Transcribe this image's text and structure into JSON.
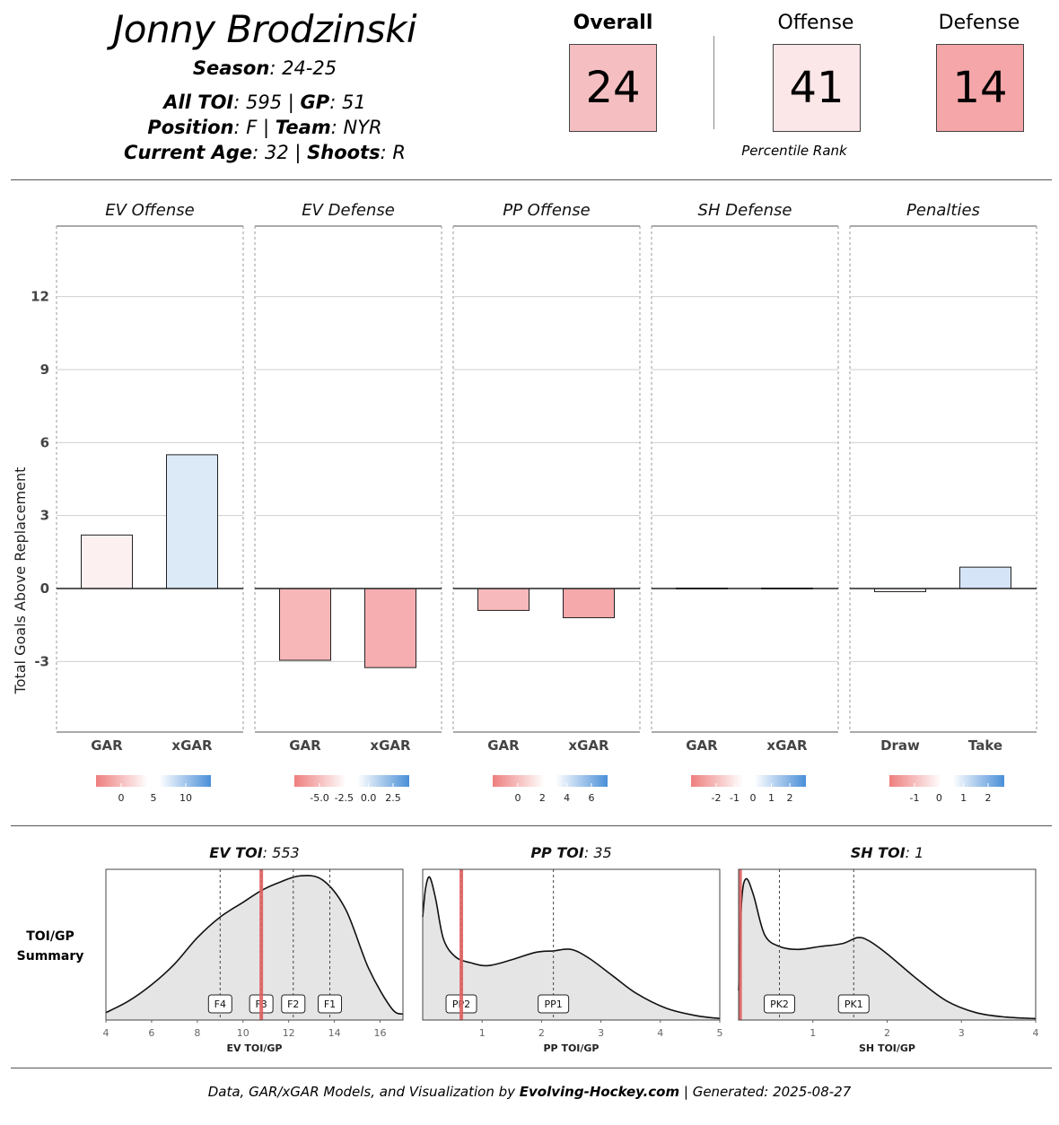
{
  "header": {
    "player_name": "Jonny Brodzinski",
    "season_label": "Season",
    "season": "24-25",
    "toi_label": "All TOI",
    "toi": "595",
    "gp_label": "GP",
    "gp": "51",
    "position_label": "Position",
    "position": "F",
    "team_label": "Team",
    "team": "NYR",
    "age_label": "Current Age",
    "age": "32",
    "shoots_label": "Shoots",
    "shoots": "R"
  },
  "scores": {
    "overall_label": "Overall",
    "overall": "24",
    "overall_color": "#f5bfc1",
    "offense_label": "Offense",
    "offense": "41",
    "offense_color": "#fbe7e8",
    "defense_label": "Defense",
    "defense": "14",
    "defense_color": "#f4a6a8",
    "percentile_label": "Percentile Rank"
  },
  "chart_data": [
    {
      "type": "bar",
      "ylabel": "Total Goals Above Replacement",
      "ylim": [
        -5.9,
        14.9
      ],
      "yticks": [
        -3,
        0,
        3,
        6,
        9,
        12
      ],
      "grid": true,
      "panels": [
        {
          "title": "EV Offense",
          "categories": [
            "GAR",
            "xGAR"
          ],
          "values": [
            2.2,
            5.5
          ],
          "colors": [
            "#fdf0f0",
            "#dce9f6"
          ],
          "legend_ticks": [
            "0",
            "5",
            "10"
          ]
        },
        {
          "title": "EV Defense",
          "categories": [
            "GAR",
            "xGAR"
          ],
          "values": [
            -2.95,
            -3.25
          ],
          "colors": [
            "#f7b6b8",
            "#f6aeb1"
          ],
          "legend_ticks": [
            "-5.0",
            "-2.5",
            "0.0",
            "2.5"
          ]
        },
        {
          "title": "PP Offense",
          "categories": [
            "GAR",
            "xGAR"
          ],
          "values": [
            -0.9,
            -1.2
          ],
          "colors": [
            "#f7b9bb",
            "#f5a9ab"
          ],
          "legend_ticks": [
            "0",
            "2",
            "4",
            "6"
          ]
        },
        {
          "title": "SH Defense",
          "categories": [
            "GAR",
            "xGAR"
          ],
          "values": [
            0.02,
            0.02
          ],
          "colors": [
            "#fdf6f6",
            "#fdf6f6"
          ],
          "legend_ticks": [
            "-2",
            "-1",
            "0",
            "1",
            "2"
          ]
        },
        {
          "title": "Penalties",
          "categories": [
            "Draw",
            "Take"
          ],
          "values": [
            -0.13,
            0.88
          ],
          "colors": [
            "#fdf3f3",
            "#d6e4f7"
          ],
          "legend_ticks": [
            "-1",
            "0",
            "1",
            "2"
          ]
        }
      ]
    },
    {
      "type": "area",
      "summary_label": "TOI/GP Summary",
      "panels": [
        {
          "title_label": "EV TOI",
          "title_value": "553",
          "xlabel": "EV TOI/GP",
          "xlim": [
            4,
            17
          ],
          "xticks": [
            4,
            6,
            8,
            10,
            12,
            14,
            16
          ],
          "player_value": 10.8,
          "markers": [
            {
              "label": "F4",
              "x": 9.0
            },
            {
              "label": "F3",
              "x": 10.8
            },
            {
              "label": "F2",
              "x": 12.2
            },
            {
              "label": "F1",
              "x": 13.8
            }
          ],
          "density": [
            [
              4,
              0.05
            ],
            [
              5,
              0.13
            ],
            [
              6,
              0.24
            ],
            [
              7,
              0.38
            ],
            [
              8,
              0.56
            ],
            [
              9,
              0.7
            ],
            [
              10,
              0.8
            ],
            [
              10.8,
              0.88
            ],
            [
              11.5,
              0.93
            ],
            [
              12.5,
              0.98
            ],
            [
              13.5,
              0.95
            ],
            [
              14.5,
              0.75
            ],
            [
              15.5,
              0.35
            ],
            [
              16.5,
              0.08
            ],
            [
              17,
              0.04
            ]
          ]
        },
        {
          "title_label": "PP TOI",
          "title_value": "35",
          "xlabel": "PP TOI/GP",
          "xlim": [
            0,
            5
          ],
          "xticks": [
            1,
            2,
            3,
            4,
            5
          ],
          "player_value": 0.65,
          "markers": [
            {
              "label": "PP2",
              "x": 0.65
            },
            {
              "label": "PP1",
              "x": 2.2
            }
          ],
          "density": [
            [
              0,
              0.7
            ],
            [
              0.05,
              0.9
            ],
            [
              0.12,
              0.97
            ],
            [
              0.22,
              0.82
            ],
            [
              0.35,
              0.55
            ],
            [
              0.55,
              0.43
            ],
            [
              0.8,
              0.39
            ],
            [
              1.1,
              0.37
            ],
            [
              1.5,
              0.41
            ],
            [
              1.9,
              0.46
            ],
            [
              2.2,
              0.47
            ],
            [
              2.5,
              0.48
            ],
            [
              2.8,
              0.42
            ],
            [
              3.2,
              0.3
            ],
            [
              3.6,
              0.18
            ],
            [
              4.1,
              0.08
            ],
            [
              4.6,
              0.03
            ],
            [
              5,
              0.01
            ]
          ]
        },
        {
          "title_label": "SH TOI",
          "title_value": "1",
          "xlabel": "SH TOI/GP",
          "xlim": [
            0,
            4
          ],
          "xticks": [
            1,
            2,
            3,
            4
          ],
          "player_value": 0.02,
          "markers": [
            {
              "label": "PK2",
              "x": 0.55
            },
            {
              "label": "PK1",
              "x": 1.55
            }
          ],
          "density": [
            [
              0,
              0.2
            ],
            [
              0.04,
              0.8
            ],
            [
              0.1,
              0.96
            ],
            [
              0.2,
              0.85
            ],
            [
              0.35,
              0.58
            ],
            [
              0.55,
              0.5
            ],
            [
              0.8,
              0.48
            ],
            [
              1.1,
              0.5
            ],
            [
              1.4,
              0.52
            ],
            [
              1.6,
              0.56
            ],
            [
              1.75,
              0.54
            ],
            [
              2.0,
              0.45
            ],
            [
              2.4,
              0.28
            ],
            [
              2.8,
              0.13
            ],
            [
              3.2,
              0.05
            ],
            [
              3.6,
              0.02
            ],
            [
              4,
              0.01
            ]
          ]
        }
      ]
    }
  ],
  "footer": {
    "prefix": "Data, GAR/xGAR Models, and Visualization by ",
    "site": "Evolving-Hockey.com",
    "suffix": " | Generated: 2025-08-27"
  }
}
